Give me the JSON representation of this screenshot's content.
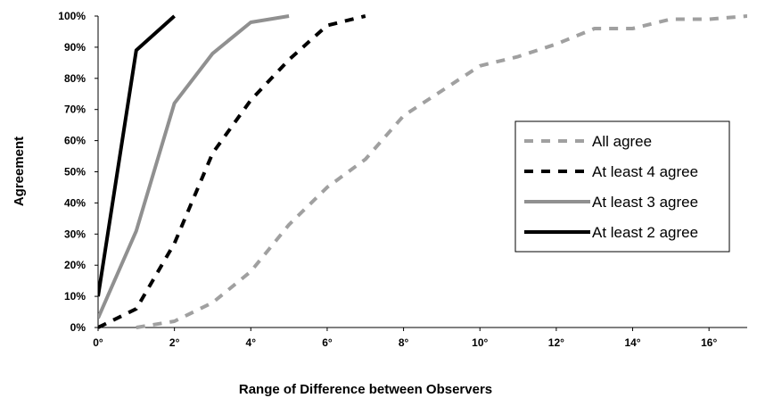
{
  "chart_data": {
    "type": "line",
    "title": "",
    "xlabel": "Range of Difference between Observers",
    "ylabel": "Agreement",
    "xlim": [
      0,
      17
    ],
    "ylim": [
      0,
      100
    ],
    "x_ticks": [
      0,
      2,
      4,
      6,
      8,
      10,
      12,
      14,
      16
    ],
    "x_tick_labels": [
      "0°",
      "2°",
      "4°",
      "6°",
      "8°",
      "10°",
      "12°",
      "14°",
      "16°"
    ],
    "y_ticks": [
      0,
      10,
      20,
      30,
      40,
      50,
      60,
      70,
      80,
      90,
      100
    ],
    "y_tick_labels": [
      "0%",
      "10%",
      "20%",
      "30%",
      "40%",
      "50%",
      "60%",
      "70%",
      "80%",
      "90%",
      "100%"
    ],
    "grid": false,
    "legend_position": "right",
    "series": [
      {
        "name": "All agree",
        "color": "#a0a0a0",
        "style": "dashed",
        "x": [
          1,
          2,
          3,
          4,
          5,
          6,
          7,
          8,
          9,
          10,
          11,
          12,
          13,
          14,
          15,
          16,
          17
        ],
        "y": [
          0,
          2,
          8,
          18,
          33,
          45,
          54,
          68,
          76,
          84,
          87,
          91,
          96,
          96,
          99,
          99,
          100
        ]
      },
      {
        "name": "At least 4 agree",
        "color": "#000000",
        "style": "dashed",
        "x": [
          0,
          1,
          2,
          3,
          4,
          5,
          6,
          7
        ],
        "y": [
          0,
          6,
          27,
          56,
          73,
          86,
          97,
          100
        ]
      },
      {
        "name": "At least 3 agree",
        "color": "#909090",
        "style": "solid",
        "x": [
          0,
          1,
          2,
          3,
          4,
          5
        ],
        "y": [
          3,
          31,
          72,
          88,
          98,
          100
        ]
      },
      {
        "name": "At least 2 agree",
        "color": "#000000",
        "style": "solid",
        "x": [
          0,
          1,
          2
        ],
        "y": [
          10,
          89,
          100
        ]
      }
    ]
  }
}
